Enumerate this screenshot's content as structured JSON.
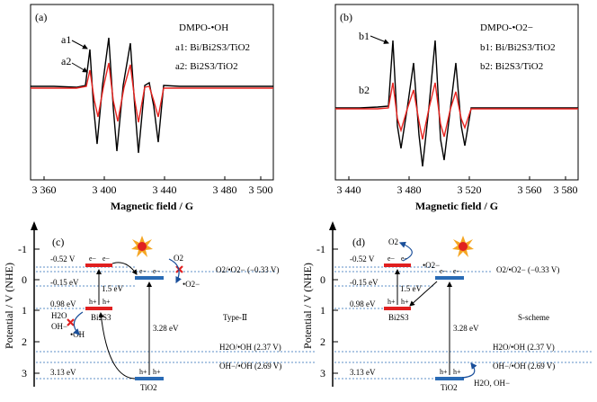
{
  "panel_a": {
    "tag": "(a)",
    "title": "DMPO-•OH",
    "legend1": "a1: Bi/Bi2S3/TiO2",
    "legend2": "a2: Bi2S3/TiO2",
    "marker1": "a1",
    "marker2": "a2",
    "xlabel": "Magnetic field / G",
    "ticks": [
      "3 360",
      "3 400",
      "3 440",
      "3 480",
      "3 500"
    ]
  },
  "panel_b": {
    "tag": "(b)",
    "title": "DMPO-•O2−",
    "legend1": "b1: Bi/Bi2S3/TiO2",
    "legend2": "b2: Bi2S3/TiO2",
    "marker1": "b1",
    "marker2": "b2",
    "xlabel": "Magnetic field / G",
    "ticks": [
      "3 440",
      "3 480",
      "3 520",
      "3 560",
      "3 580"
    ]
  },
  "panel_c": {
    "tag": "(c)",
    "ylabel": "Potential / V (NHE)",
    "yticks": [
      "-1",
      "0",
      "1",
      "2",
      "3"
    ],
    "cb_bi2s3": "-0.52 V",
    "cb_tio2": "-0.15 eV",
    "vb_bi2s3": "0.98 eV",
    "vb_tio2": "3.13 eV",
    "gap_bi2s3": "1.5 eV",
    "gap_tio2": "3.28 eV",
    "bi2s3": "Bi2S3",
    "tio2": "TiO2",
    "type": "Type-Ⅱ",
    "h2o": "H2O",
    "oh_minus": "OH−",
    "oh_rad": "•OH",
    "o2": "O2",
    "o2_rad": "•O2−",
    "e": "e−",
    "h": "h+",
    "ref1": "O2/•O2− (−0.33 V)",
    "ref2": "H2O/•OH (2.37 V)",
    "ref3": "OH−/•OH (2.69 V)"
  },
  "panel_d": {
    "tag": "(d)",
    "ylabel": "Potential / V (NHE)",
    "yticks": [
      "-1",
      "0",
      "1",
      "2",
      "3"
    ],
    "cb_bi2s3": "-0.52 V",
    "cb_tio2": "-0.15 eV",
    "vb_bi2s3": "0.98 eV",
    "vb_tio2": "3.13 eV",
    "gap_bi2s3": "1.5 eV",
    "gap_tio2": "3.28 eV",
    "bi2s3": "Bi2S3",
    "tio2": "TiO2",
    "type": "S-scheme",
    "o2": "O2",
    "o2_rad": "•O2−",
    "h2o_oh": "H2O, OH−",
    "e": "e−",
    "h": "h+",
    "ref1": "O2/•O2− (−0.33 V)",
    "ref2": "H2O/•OH (2.37 V)",
    "ref3": "OH−/•OH (2.69 V)"
  },
  "colors": {
    "trace1": "#000000",
    "trace2": "#e8231f",
    "band_bi2s3": "#e02020",
    "band_tio2": "#2a6bb5",
    "ref_line": "#2a6bb5",
    "arrow": "#1a4f9a",
    "cross": "#e02020"
  }
}
